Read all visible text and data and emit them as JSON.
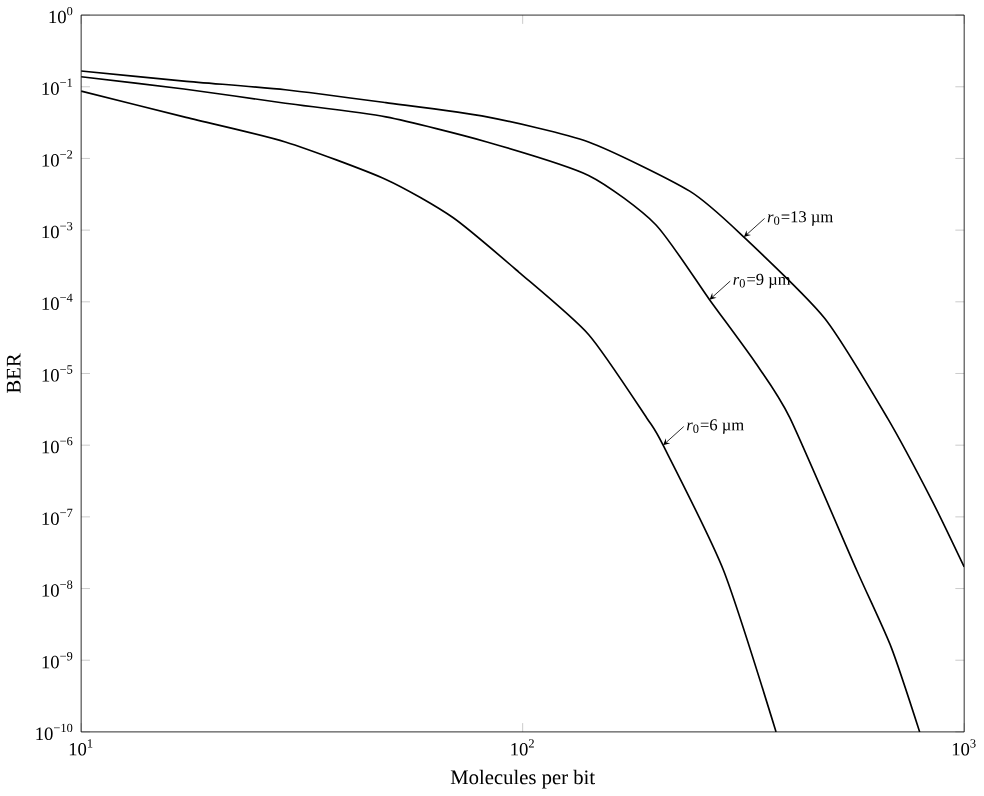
{
  "chart_data": {
    "type": "line",
    "xlabel": "Molecules per bit",
    "ylabel": "BER",
    "log": "xy",
    "xlim": [
      10,
      1000
    ],
    "ylim": [
      1e-10,
      1
    ],
    "xticks": [
      {
        "value": 10,
        "label": "10$^{1}$"
      },
      {
        "value": 100,
        "label": "10$^{2}$"
      },
      {
        "value": 1000,
        "label": "10$^{3}$"
      }
    ],
    "yticks": [
      {
        "value": 1e-10,
        "label": "10$^{−10}$"
      },
      {
        "value": 1e-09,
        "label": "10$^{−9}$"
      },
      {
        "value": 1e-08,
        "label": "10$^{−8}$"
      },
      {
        "value": 1e-07,
        "label": "10$^{−7}$"
      },
      {
        "value": 1e-06,
        "label": "10$^{−6}$"
      },
      {
        "value": 1e-05,
        "label": "10$^{−5}$"
      },
      {
        "value": 0.0001,
        "label": "10$^{−4}$"
      },
      {
        "value": 0.001,
        "label": "10$^{−3}$"
      },
      {
        "value": 0.01,
        "label": "10$^{−2}$"
      },
      {
        "value": 0.1,
        "label": "10$^{−1}$"
      },
      {
        "value": 1,
        "label": "10$^{0}$"
      }
    ],
    "grid": false,
    "series": [
      {
        "color": "#000000",
        "x": [
          10,
          17.1,
          29,
          49,
          83,
          141,
          239,
          317,
          483,
          670,
          845,
          1000
        ],
        "values": [
          0.166,
          0.12,
          0.091,
          0.06,
          0.038,
          0.017,
          0.0035,
          0.0008,
          5.9e-05,
          2.4e-06,
          1.7e-07,
          2e-08
        ]
      },
      {
        "color": "#000000",
        "x": [
          10,
          17.1,
          29,
          49,
          83,
          141,
          200,
          265,
          337,
          403,
          571,
          684,
          793
        ],
        "values": [
          0.138,
          0.093,
          0.059,
          0.038,
          0.017,
          0.0058,
          0.0012,
          0.000107,
          1.4e-05,
          2.4e-06,
          1.8e-08,
          1.5e-09,
          1e-10
        ]
      },
      {
        "color": "#000000",
        "x": [
          10,
          17.1,
          29,
          49,
          69.5,
          98,
          141,
          191,
          208,
          285,
          375
        ],
        "values": [
          0.087,
          0.038,
          0.017,
          0.0051,
          0.0015,
          0.00026,
          3.5e-05,
          2.4e-06,
          1e-06,
          1.8e-08,
          1e-10
        ]
      }
    ],
    "annotations": [
      {
        "text": "*r*$_{0}$=13 µm",
        "x": 317,
        "y": 0.0008
      },
      {
        "text": "*r*$_{0}$=9 µm",
        "x": 265,
        "y": 0.000107
      },
      {
        "text": "*r*$_{0}$=6 µm",
        "x": 208,
        "y": 1e-06
      }
    ]
  }
}
